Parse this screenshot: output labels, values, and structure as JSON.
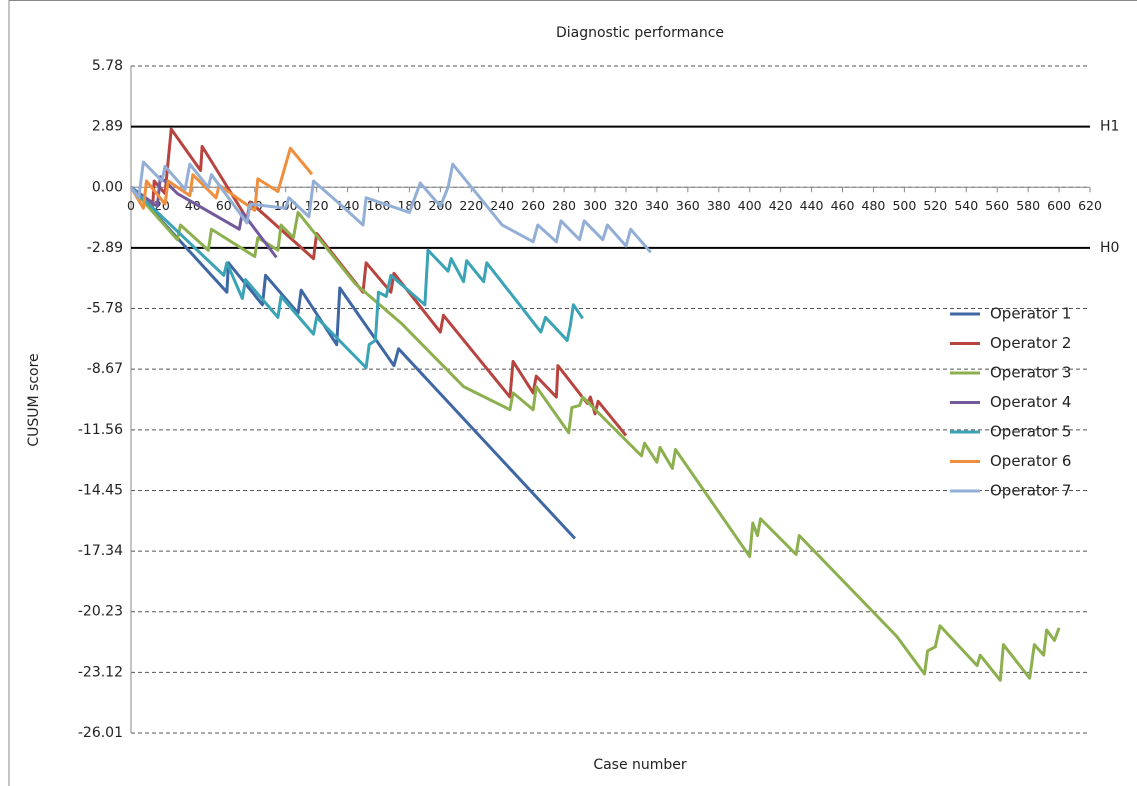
{
  "chart_data": {
    "type": "line",
    "title": "Diagnostic performance",
    "x_label": "Case number",
    "y_label": "CUSUM score",
    "xlim": [
      0,
      620
    ],
    "xticks": [
      0,
      20,
      40,
      60,
      80,
      100,
      120,
      140,
      160,
      180,
      200,
      220,
      240,
      260,
      280,
      300,
      320,
      340,
      360,
      380,
      400,
      420,
      440,
      460,
      480,
      500,
      520,
      540,
      560,
      580,
      600,
      620
    ],
    "ylim": [
      -26.01,
      5.78
    ],
    "yticks": [
      5.78,
      2.89,
      {
        "value": 0,
        "label": "0.00"
      },
      -2.89,
      -5.78,
      -8.67,
      -11.56,
      -14.45,
      -17.34,
      -20.23,
      -23.12,
      -26.01
    ],
    "grid": true,
    "legend": "right",
    "reference_lines": [
      {
        "value": 2.89,
        "label": "H1"
      },
      {
        "value": -2.89,
        "label": "H0"
      }
    ],
    "series": [
      {
        "name": "Operator 1",
        "color": "#3f67a3",
        "x": [
          0,
          62,
          63,
          85,
          87,
          108,
          110,
          133,
          135,
          170,
          173,
          287
        ],
        "values": [
          0,
          -5.0,
          -3.6,
          -5.6,
          -4.2,
          -6.0,
          -4.9,
          -7.5,
          -4.8,
          -8.5,
          -7.7,
          -16.74
        ]
      },
      {
        "name": "Operator 2",
        "color": "#b8443f",
        "x": [
          0,
          14,
          15,
          22,
          26,
          45,
          46,
          75,
          77,
          118,
          120,
          150,
          152,
          168,
          170,
          200,
          202,
          245,
          247,
          260,
          262,
          275,
          276,
          295,
          297,
          300,
          302,
          320
        ],
        "values": [
          0,
          -0.9,
          0.3,
          -0.3,
          2.77,
          0.8,
          1.95,
          -1.5,
          -0.7,
          -3.4,
          -2.2,
          -5.0,
          -3.6,
          -5.0,
          -4.1,
          -6.9,
          -6.1,
          -10.0,
          -8.3,
          -9.8,
          -9.0,
          -10.0,
          -8.5,
          -10.3,
          -10.0,
          -10.8,
          -10.2,
          -11.83
        ]
      },
      {
        "name": "Operator 3",
        "color": "#8db04f",
        "x": [
          0,
          30,
          32,
          50,
          52,
          80,
          82,
          95,
          97,
          105,
          108,
          145,
          175,
          215,
          245,
          247,
          260,
          262,
          283,
          285,
          290,
          292,
          330,
          332,
          340,
          342,
          350,
          352,
          400,
          402,
          405,
          407,
          430,
          432,
          495,
          513,
          515,
          520,
          523,
          547,
          549,
          562,
          564,
          581,
          584,
          590,
          592,
          597,
          600
        ],
        "values": [
          0,
          -2.5,
          -1.8,
          -3.0,
          -2.0,
          -3.3,
          -2.4,
          -3.0,
          -1.8,
          -2.4,
          -1.2,
          -4.6,
          -6.5,
          -9.5,
          -10.6,
          -9.8,
          -10.6,
          -9.5,
          -11.7,
          -10.5,
          -10.4,
          -10.0,
          -12.8,
          -12.2,
          -13.1,
          -12.4,
          -13.4,
          -12.5,
          -17.6,
          -16.0,
          -16.6,
          -15.8,
          -17.5,
          -16.6,
          -21.4,
          -23.2,
          -22.1,
          -21.9,
          -20.9,
          -22.8,
          -22.3,
          -23.5,
          -21.8,
          -23.4,
          -21.8,
          -22.3,
          -21.1,
          -21.6,
          -21.0
        ]
      },
      {
        "name": "Operator 4",
        "color": "#735a9c",
        "x": [
          0,
          17,
          19,
          30,
          70,
          72,
          94
        ],
        "values": [
          0,
          -0.9,
          0.5,
          -0.3,
          -2.0,
          -1.2,
          -3.34
        ]
      },
      {
        "name": "Operator 5",
        "color": "#3aa3b5",
        "x": [
          0,
          60,
          62,
          72,
          74,
          95,
          97,
          118,
          120,
          152,
          154,
          158,
          160,
          165,
          168,
          190,
          192,
          205,
          207,
          215,
          217,
          228,
          230,
          265,
          268,
          282,
          284,
          286,
          292
        ],
        "values": [
          0,
          -4.2,
          -3.6,
          -5.3,
          -4.4,
          -6.2,
          -5.2,
          -7.0,
          -6.2,
          -8.6,
          -7.5,
          -7.3,
          -5.0,
          -5.2,
          -4.2,
          -5.6,
          -3.0,
          -4.0,
          -3.4,
          -4.5,
          -3.5,
          -4.5,
          -3.6,
          -6.9,
          -6.2,
          -7.3,
          -6.6,
          -5.6,
          -6.25
        ]
      },
      {
        "name": "Operator 6",
        "color": "#ef8f3e",
        "x": [
          0,
          8,
          10,
          22,
          24,
          38,
          40,
          55,
          57,
          80,
          82,
          95,
          103,
          117
        ],
        "values": [
          0,
          -1.0,
          0.3,
          -0.8,
          0.3,
          -0.4,
          0.6,
          -0.5,
          0.1,
          -1.1,
          0.4,
          -0.2,
          1.86,
          0.62
        ]
      },
      {
        "name": "Operator 7",
        "color": "#93afd6",
        "x": [
          0,
          5,
          8,
          20,
          22,
          35,
          38,
          50,
          52,
          75,
          77,
          100,
          102,
          115,
          118,
          135,
          150,
          152,
          180,
          187,
          200,
          205,
          208,
          240,
          260,
          263,
          275,
          278,
          290,
          293,
          305,
          308,
          320,
          323,
          336
        ],
        "values": [
          0,
          -0.5,
          1.2,
          0.3,
          1.0,
          -0.1,
          1.1,
          0.0,
          0.6,
          -1.7,
          -0.8,
          -1.0,
          -0.5,
          -1.4,
          0.3,
          -0.8,
          -1.8,
          -0.5,
          -1.2,
          0.2,
          -0.9,
          0.0,
          1.1,
          -1.8,
          -2.6,
          -1.8,
          -2.6,
          -1.6,
          -2.5,
          -1.6,
          -2.5,
          -1.8,
          -2.8,
          -2.0,
          -3.1
        ]
      }
    ]
  }
}
